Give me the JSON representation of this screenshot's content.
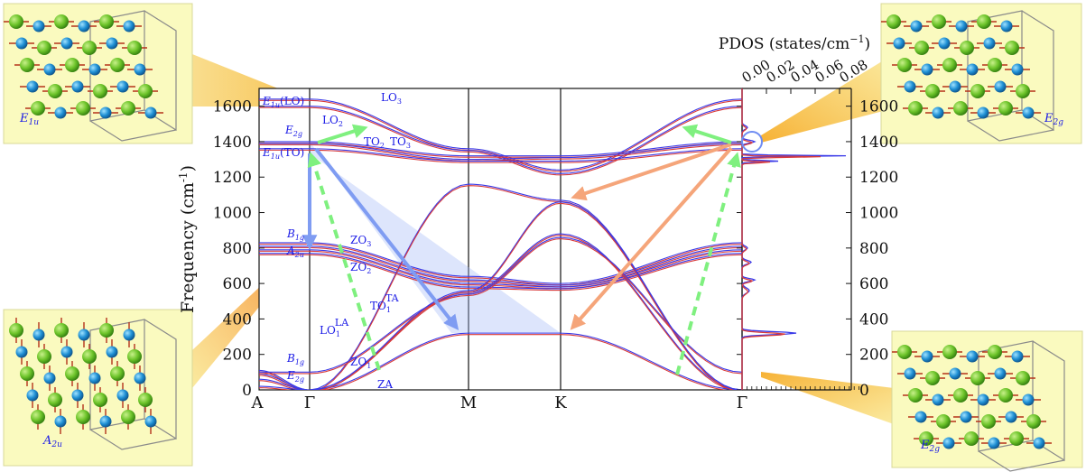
{
  "colors": {
    "panel_fill": "#fafabf",
    "panel_stroke": "#d8d89a",
    "branch_blue": "#3a3ae8",
    "branch_red": "#d83a3a",
    "arrow_blue": "#7f9cf2",
    "arrow_orange": "#f5a57a",
    "arrow_green": "#7ff07f",
    "atom_green": "#6dc42a",
    "atom_blue": "#1e8fd4"
  },
  "axis": {
    "ylabel": "Frequency (cm",
    "ylabel_sup": "-1",
    "ylabel_close": ")",
    "yticks": [
      "0",
      "200",
      "400",
      "600",
      "800",
      "1000",
      "1200",
      "1400",
      "1600"
    ],
    "ylim": [
      0,
      1700
    ],
    "high_symmetry": [
      "A",
      "Γ",
      "M",
      "K",
      "Γ"
    ]
  },
  "pdos": {
    "title": "PDOS (states/cm",
    "title_sup": "−1",
    "title_close": ")",
    "ticks": [
      "0.00",
      "0.02",
      "0.04",
      "0.06",
      "0.08"
    ],
    "right_yticks": [
      "0",
      "200",
      "400",
      "600",
      "800",
      "1000",
      "1200",
      "1400",
      "1600"
    ]
  },
  "mode_labels": {
    "e1u_lo_sym": "E",
    "e1u_lo_sub": "1u",
    "e1u_lo_tail": "(LO)",
    "e2g_sym": "E",
    "e2g_sub": "2g",
    "e1u_to_sym": "E",
    "e1u_to_sub": "1u",
    "e1u_to_tail": "(TO)",
    "b1g_sym": "B",
    "b1g_sub": "1g",
    "a2u_sym": "A",
    "a2u_sub": "2u",
    "b1g_low_sym": "B",
    "b1g_low_sub": "1g",
    "e2g_low_sym": "E",
    "e2g_low_sub": "2g",
    "lo3": "LO",
    "lo3_sub": "3",
    "lo2": "LO",
    "lo2_sub": "2",
    "to2": "TO",
    "to2_sub": "2",
    "to3": "TO",
    "to3_sub": "3",
    "zo3": "ZO",
    "zo3_sub": "3",
    "zo2": "ZO",
    "zo2_sub": "2",
    "zo1": "ZO",
    "zo1_sub": "1",
    "to1": "TO",
    "to1_sub": "1",
    "to1_sup": "TA",
    "lo1": "LO",
    "lo1_sub": "1",
    "lo1_sup": "LA",
    "za": "ZA"
  },
  "panels": {
    "top_left": {
      "label": "E",
      "sub": "1u"
    },
    "bottom_left": {
      "label": "A",
      "sub": "2u"
    },
    "top_right": {
      "label": "E",
      "sub": "2g"
    },
    "bottom_right": {
      "label": "E",
      "sub": "2g"
    }
  }
}
